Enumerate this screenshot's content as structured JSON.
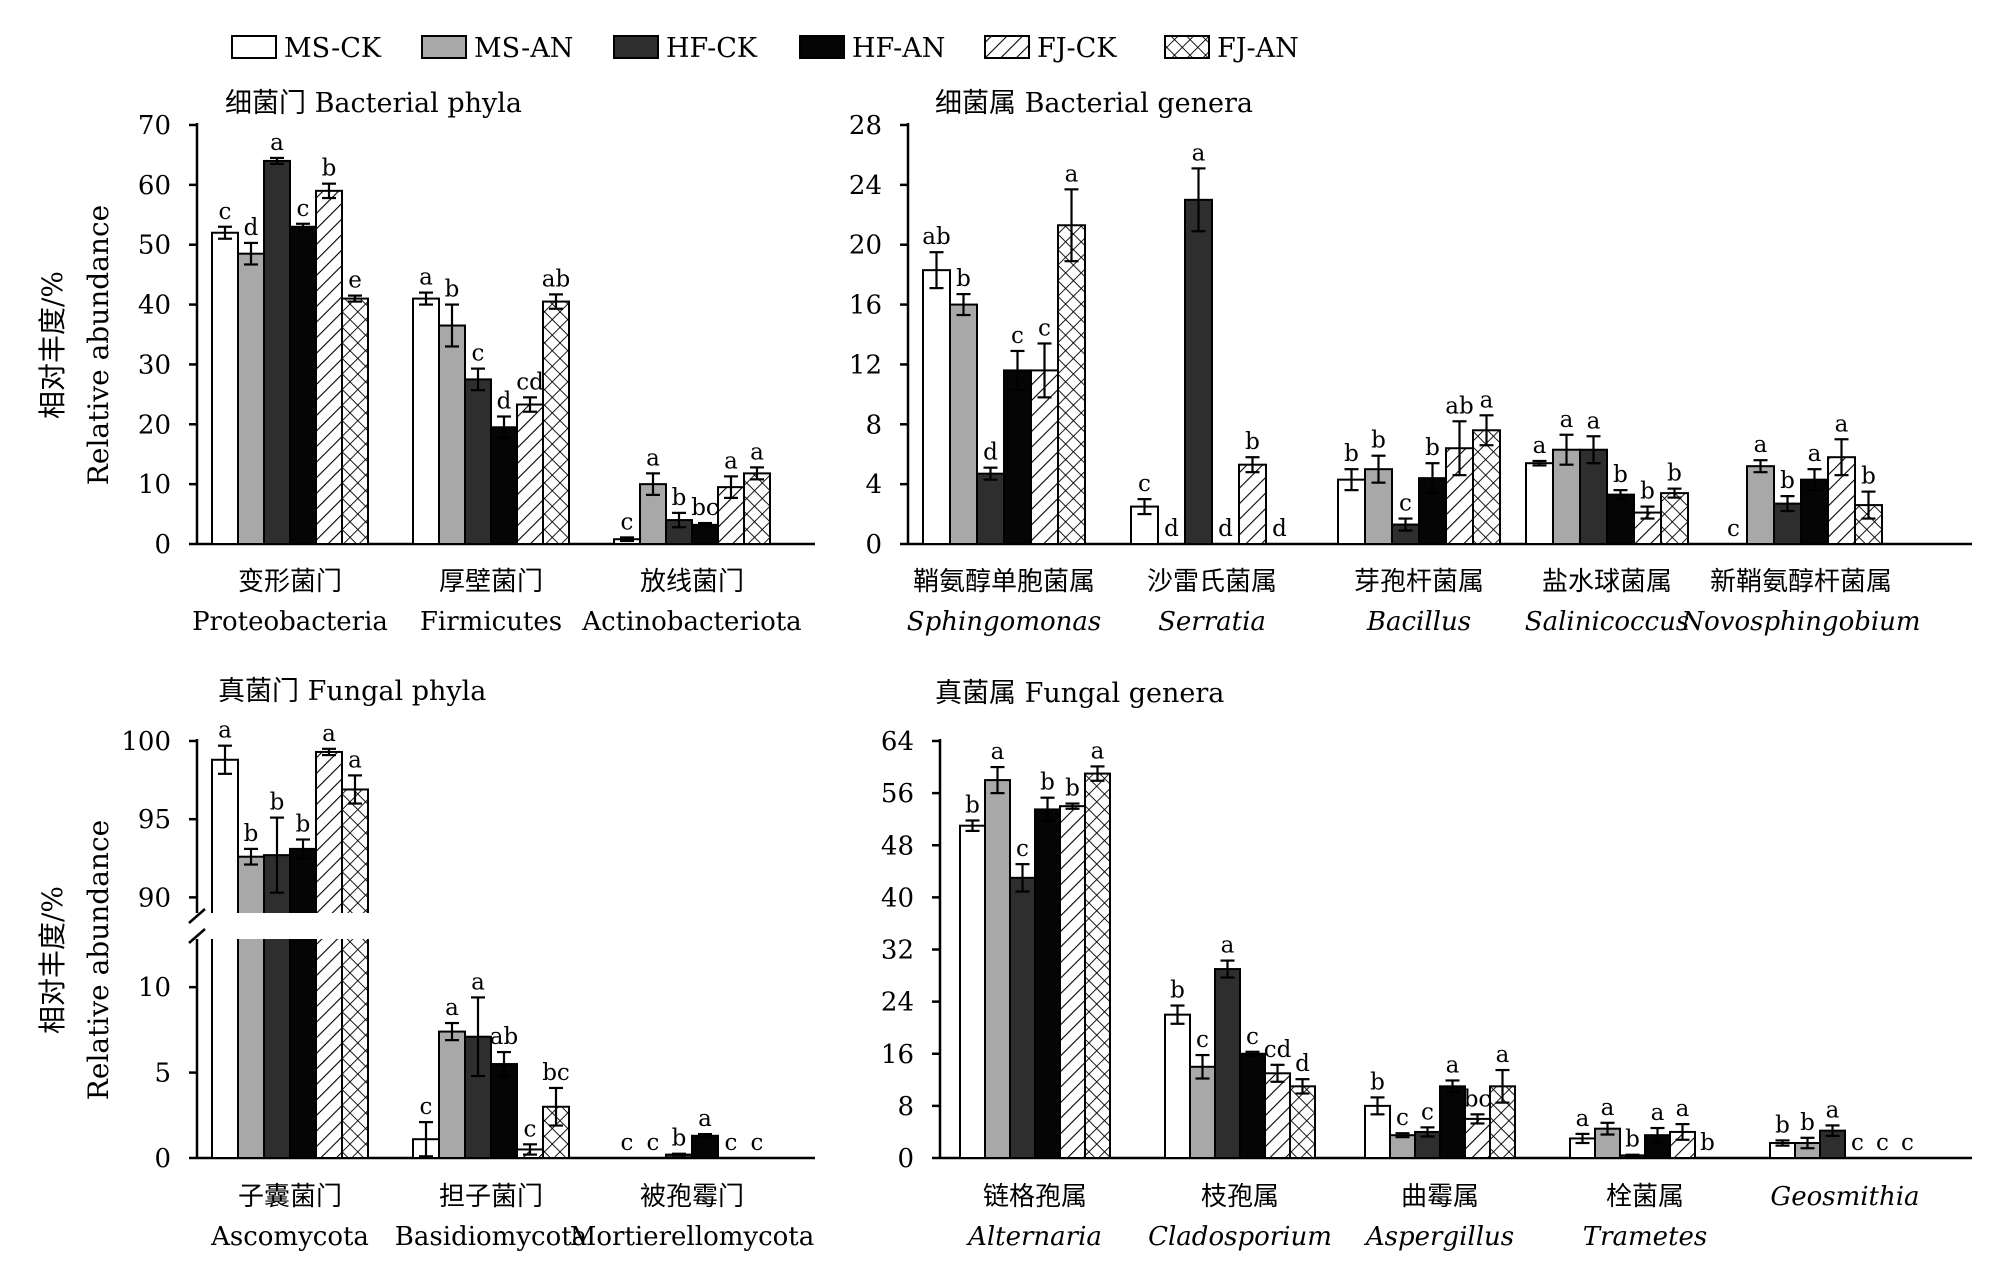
{
  "legend": {
    "groups": [
      {
        "key": "MS-CK",
        "label": "MS-CK"
      },
      {
        "key": "MS-AN",
        "label": "MS-AN"
      },
      {
        "key": "HF-CK",
        "label": "HF-CK"
      },
      {
        "key": "HF-AN",
        "label": "HF-AN"
      },
      {
        "key": "FJ-CK",
        "label": "FJ-CK"
      },
      {
        "key": "FJ-AN",
        "label": "FJ-AN"
      }
    ]
  },
  "colors": {
    "MS-CK": "#ffffff",
    "MS-AN": "#a8a8a8",
    "HF-CK": "#2e2e2e",
    "HF-AN": "#050505",
    "FJ-CK": "#ffffff",
    "FJ-AN": "#ffffff"
  },
  "y_axis_label": {
    "cn": "相对丰度/%",
    "en": "Relative abundance"
  },
  "chart_data": [
    {
      "id": "bacterial-phyla",
      "type": "bar",
      "title": "细菌门 Bacterial phyla",
      "ylabel": "相对丰度/% Relative abundance",
      "ylim": [
        0,
        70
      ],
      "yticks": [
        0,
        10,
        20,
        30,
        40,
        50,
        60,
        70
      ],
      "categories": [
        {
          "cn": "变形菌门",
          "en": "Proteobacteria",
          "italic": false
        },
        {
          "cn": "厚壁菌门",
          "en": "Firmicutes",
          "italic": false
        },
        {
          "cn": "放线菌门",
          "en": "Actinobacteriota",
          "italic": false
        }
      ],
      "series": [
        {
          "name": "MS-CK",
          "values": [
            52,
            41,
            0.8
          ],
          "errors": [
            1,
            1,
            0.3
          ],
          "sig": [
            "c",
            "a",
            "c"
          ]
        },
        {
          "name": "MS-AN",
          "values": [
            48.5,
            36.5,
            10
          ],
          "errors": [
            1.8,
            3.5,
            1.8
          ],
          "sig": [
            "d",
            "b",
            "a"
          ]
        },
        {
          "name": "HF-CK",
          "values": [
            64,
            27.5,
            4
          ],
          "errors": [
            0.5,
            1.8,
            1.2
          ],
          "sig": [
            "a",
            "c",
            "b"
          ]
        },
        {
          "name": "HF-AN",
          "values": [
            53,
            19.5,
            3.2
          ],
          "errors": [
            0.5,
            1.8,
            0.3
          ],
          "sig": [
            "c",
            "d",
            "bc"
          ]
        },
        {
          "name": "FJ-CK",
          "values": [
            59,
            23.3,
            9.5
          ],
          "errors": [
            1.2,
            1.2,
            1.8
          ],
          "sig": [
            "b",
            "cd",
            "a"
          ]
        },
        {
          "name": "FJ-AN",
          "values": [
            41,
            40.5,
            11.8
          ],
          "errors": [
            0.5,
            1.2,
            1
          ],
          "sig": [
            "e",
            "ab",
            "a"
          ]
        }
      ]
    },
    {
      "id": "bacterial-genera",
      "type": "bar",
      "title": "细菌属 Bacterial genera",
      "ylabel": "",
      "ylim": [
        0,
        28
      ],
      "yticks": [
        0,
        4,
        8,
        12,
        16,
        20,
        24,
        28
      ],
      "categories": [
        {
          "cn": "鞘氨醇单胞菌属",
          "en": "Sphingomonas",
          "italic": true
        },
        {
          "cn": "沙雷氏菌属",
          "en": "Serratia",
          "italic": true
        },
        {
          "cn": "芽孢杆菌属",
          "en": "Bacillus",
          "italic": true
        },
        {
          "cn": "盐水球菌属",
          "en": "Salinicoccus",
          "italic": true
        },
        {
          "cn": "新鞘氨醇杆菌属",
          "en": "Novosphingobium",
          "italic": true
        }
      ],
      "series": [
        {
          "name": "MS-CK",
          "values": [
            18.3,
            2.5,
            4.3,
            5.4,
            0
          ],
          "errors": [
            1.2,
            0.5,
            0.7,
            0.15,
            0
          ],
          "sig": [
            "ab",
            "c",
            "b",
            "a",
            "c"
          ]
        },
        {
          "name": "MS-AN",
          "values": [
            16,
            0,
            5,
            6.3,
            5.2
          ],
          "errors": [
            0.7,
            0,
            0.9,
            1,
            0.4
          ],
          "sig": [
            "b",
            "d",
            "b",
            "a",
            "a"
          ]
        },
        {
          "name": "HF-CK",
          "values": [
            4.7,
            23,
            1.3,
            6.3,
            2.7
          ],
          "errors": [
            0.4,
            2.1,
            0.4,
            0.9,
            0.5
          ],
          "sig": [
            "d",
            "a",
            "c",
            "a",
            "b"
          ]
        },
        {
          "name": "HF-AN",
          "values": [
            11.6,
            0,
            4.4,
            3.3,
            4.3
          ],
          "errors": [
            1.3,
            0,
            1,
            0.3,
            0.7
          ],
          "sig": [
            "c",
            "d",
            "b",
            "b",
            "a"
          ]
        },
        {
          "name": "FJ-CK",
          "values": [
            11.6,
            5.3,
            6.4,
            2.1,
            5.8
          ],
          "errors": [
            1.8,
            0.5,
            1.8,
            0.4,
            1.2
          ],
          "sig": [
            "c",
            "b",
            "ab",
            "b",
            "a"
          ]
        },
        {
          "name": "FJ-AN",
          "values": [
            21.3,
            0,
            7.6,
            3.4,
            2.6
          ],
          "errors": [
            2.4,
            0,
            1,
            0.3,
            0.9
          ],
          "sig": [
            "a",
            "d",
            "a",
            "b",
            "b"
          ]
        }
      ]
    },
    {
      "id": "fungal-phyla",
      "type": "bar",
      "title": "真菌门 Fungal phyla",
      "ylabel": "相对丰度/% Relative abundance",
      "axis_break": true,
      "ylim_lower": [
        0,
        12
      ],
      "ylim_upper": [
        89,
        100
      ],
      "yticks": [
        0,
        5,
        10,
        90,
        95,
        100
      ],
      "categories": [
        {
          "cn": "子囊菌门",
          "en": "Ascomycota",
          "italic": false
        },
        {
          "cn": "担子菌门",
          "en": "Basidiomycota",
          "italic": false
        },
        {
          "cn": "被孢霉门",
          "en": "Mortierellomycota",
          "italic": false
        }
      ],
      "series": [
        {
          "name": "MS-CK",
          "values": [
            98.8,
            1.1,
            0
          ],
          "errors": [
            0.9,
            1,
            0
          ],
          "sig": [
            "a",
            "c",
            "c"
          ]
        },
        {
          "name": "MS-AN",
          "values": [
            92.6,
            7.4,
            0
          ],
          "errors": [
            0.5,
            0.5,
            0
          ],
          "sig": [
            "b",
            "a",
            "c"
          ]
        },
        {
          "name": "HF-CK",
          "values": [
            92.7,
            7.1,
            0.2
          ],
          "errors": [
            2.4,
            2.3,
            0.05
          ],
          "sig": [
            "b",
            "a",
            "b"
          ]
        },
        {
          "name": "HF-AN",
          "values": [
            93.1,
            5.5,
            1.3
          ],
          "errors": [
            0.6,
            0.7,
            0.1
          ],
          "sig": [
            "b",
            "ab",
            "a"
          ]
        },
        {
          "name": "FJ-CK",
          "values": [
            99.3,
            0.5,
            0
          ],
          "errors": [
            0.2,
            0.3,
            0
          ],
          "sig": [
            "a",
            "c",
            "c"
          ]
        },
        {
          "name": "FJ-AN",
          "values": [
            96.9,
            3,
            0
          ],
          "errors": [
            0.9,
            1.1,
            0
          ],
          "sig": [
            "a",
            "bc",
            "c"
          ]
        }
      ]
    },
    {
      "id": "fungal-genera",
      "type": "bar",
      "title": "真菌属 Fungal genera",
      "ylabel": "",
      "ylim": [
        0,
        64
      ],
      "yticks": [
        0,
        8,
        16,
        24,
        32,
        40,
        48,
        56,
        64
      ],
      "categories": [
        {
          "cn": "链格孢属",
          "en": "Alternaria",
          "italic": true
        },
        {
          "cn": "枝孢属",
          "en": "Cladosporium",
          "italic": true
        },
        {
          "cn": "曲霉属",
          "en": "Aspergillus",
          "italic": true
        },
        {
          "cn": "栓菌属",
          "en": "Trametes",
          "italic": true
        },
        {
          "cn": "",
          "en": "Geosmithia",
          "italic": true
        }
      ],
      "series": [
        {
          "name": "MS-CK",
          "values": [
            51,
            22,
            8,
            3,
            2.3
          ],
          "errors": [
            0.8,
            1.4,
            1.3,
            0.7,
            0.4
          ],
          "sig": [
            "b",
            "b",
            "b",
            "a",
            "b"
          ]
        },
        {
          "name": "MS-AN",
          "values": [
            58,
            14,
            3.5,
            4.5,
            2.3
          ],
          "errors": [
            2,
            1.8,
            0.3,
            0.9,
            0.8
          ],
          "sig": [
            "a",
            "c",
            "c",
            "a",
            "b"
          ]
        },
        {
          "name": "HF-CK",
          "values": [
            43,
            29,
            4,
            0.4,
            4.2
          ],
          "errors": [
            2.1,
            1.3,
            0.7,
            0.1,
            0.8
          ],
          "sig": [
            "c",
            "a",
            "c",
            "b",
            "a"
          ]
        },
        {
          "name": "HF-AN",
          "values": [
            53.5,
            16,
            11,
            3.5,
            0
          ],
          "errors": [
            1.8,
            0.3,
            0.9,
            1.1,
            0
          ],
          "sig": [
            "b",
            "c",
            "a",
            "a",
            "c"
          ]
        },
        {
          "name": "FJ-CK",
          "values": [
            54,
            13,
            6,
            4,
            0
          ],
          "errors": [
            0.4,
            1.3,
            0.7,
            1.2,
            0
          ],
          "sig": [
            "b",
            "cd",
            "bc",
            "a",
            "c"
          ]
        },
        {
          "name": "FJ-AN",
          "values": [
            59,
            11,
            11,
            0,
            0
          ],
          "errors": [
            1.1,
            1.1,
            2.5,
            0,
            0
          ],
          "sig": [
            "a",
            "d",
            "a",
            "b",
            "c"
          ]
        }
      ]
    }
  ]
}
